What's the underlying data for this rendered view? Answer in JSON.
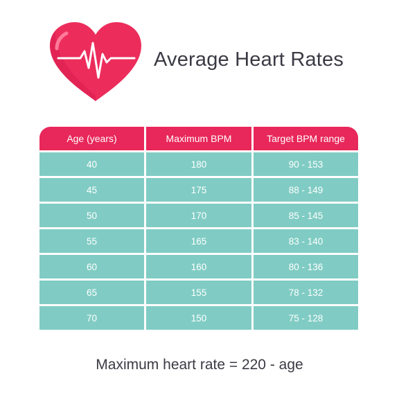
{
  "title": "Average Heart Rates",
  "formula": "Maximum heart rate = 220 - age",
  "icon": "heart-with-pulse-line",
  "colors": {
    "header": "#e8275a",
    "cell": "#80ccc4",
    "heart": "#ec2d5c"
  },
  "chart_data": {
    "type": "table",
    "columns": [
      "Age (years)",
      "Maximum BPM",
      "Target BPM range"
    ],
    "rows": [
      [
        "40",
        "180",
        "90 - 153"
      ],
      [
        "45",
        "175",
        "88 - 149"
      ],
      [
        "50",
        "170",
        "85 - 145"
      ],
      [
        "55",
        "165",
        "83 - 140"
      ],
      [
        "60",
        "160",
        "80 - 136"
      ],
      [
        "65",
        "155",
        "78 - 132"
      ],
      [
        "70",
        "150",
        "75 - 128"
      ]
    ]
  }
}
